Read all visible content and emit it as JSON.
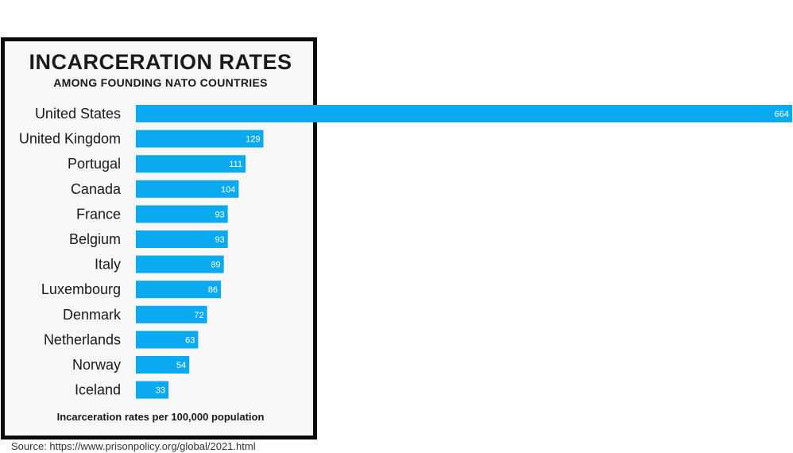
{
  "colors": {
    "bar": "#0aaaf0",
    "frame": "#0b0b0b",
    "panel": "#f7f7f7"
  },
  "chart_data": {
    "type": "bar",
    "orientation": "horizontal",
    "title": "INCARCERATION RATES",
    "subtitle": "AMONG FOUNDING NATO COUNTRIES",
    "categories": [
      "United States",
      "United Kingdom",
      "Portugal",
      "Canada",
      "France",
      "Belgium",
      "Italy",
      "Luxembourg",
      "Denmark",
      "Netherlands",
      "Norway",
      "Iceland"
    ],
    "values": [
      664,
      129,
      111,
      104,
      93,
      93,
      89,
      86,
      72,
      63,
      54,
      33
    ],
    "xlabel": "Incarceration rates per 100,000 population",
    "data_labels": true,
    "grid": false,
    "source": "Source: https://www.prisonpolicy.org/global/2021.html"
  }
}
